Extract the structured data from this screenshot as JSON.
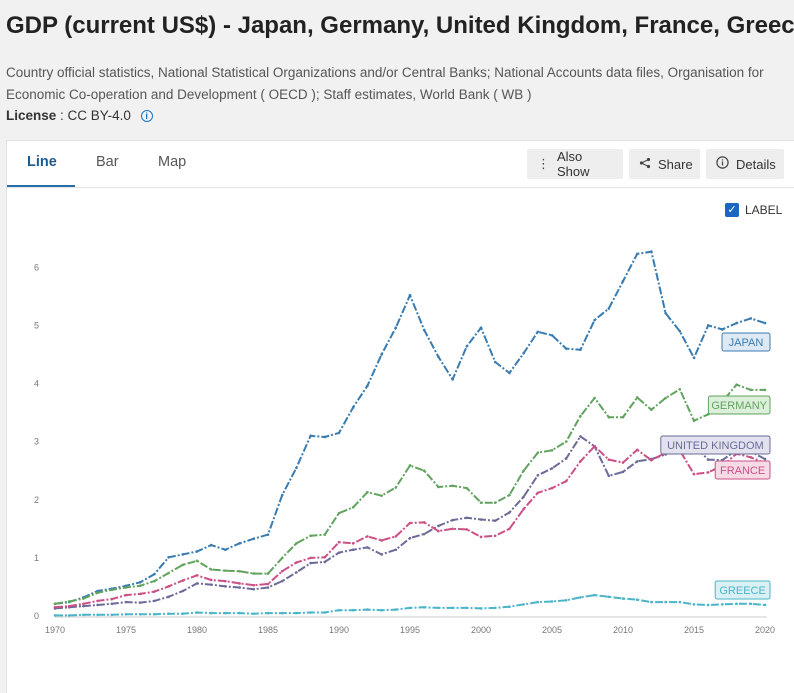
{
  "header": {
    "title": "GDP (current US$) - Japan, Germany, United Kingdom, France, Greece",
    "source": "Country official statistics, National Statistical Organizations and/or Central Banks; National Accounts data files, Organisation for Economic Co-operation and Development ( OECD ); Staff estimates, World Bank ( WB )",
    "license_label": "License",
    "license_value": ": CC BY-4.0"
  },
  "tabs": [
    {
      "label": "Line"
    },
    {
      "label": "Bar"
    },
    {
      "label": "Map"
    }
  ],
  "toolbar": {
    "also_show": "Also Show",
    "share": "Share",
    "details": "Details"
  },
  "label_toggle": "LABEL",
  "chart_data": {
    "type": "line",
    "title": "GDP (current US$) - Japan, Germany, United Kingdom, France, Greece",
    "xlabel": "",
    "ylabel": "",
    "xlim": [
      1970,
      2021
    ],
    "ylim": [
      0,
      6.4
    ],
    "yticks": [
      0,
      1,
      2,
      3,
      4,
      5,
      6
    ],
    "xticks": [
      1970,
      1975,
      1980,
      1985,
      1990,
      1995,
      2000,
      2005,
      2010,
      2015,
      2020
    ],
    "grid": false,
    "x": [
      1970,
      1971,
      1972,
      1973,
      1974,
      1975,
      1976,
      1977,
      1978,
      1979,
      1980,
      1981,
      1982,
      1983,
      1984,
      1985,
      1986,
      1987,
      1988,
      1989,
      1990,
      1991,
      1992,
      1993,
      1994,
      1995,
      1996,
      1997,
      1998,
      1999,
      2000,
      2001,
      2002,
      2003,
      2004,
      2005,
      2006,
      2007,
      2008,
      2009,
      2010,
      2011,
      2012,
      2013,
      2014,
      2015,
      2016,
      2017,
      2018,
      2019,
      2020
    ],
    "series": [
      {
        "name": "JAPAN",
        "color": "#3a7cb0",
        "label_fill": "#dde9f5",
        "values": [
          0.21,
          0.24,
          0.32,
          0.43,
          0.47,
          0.52,
          0.58,
          0.72,
          1.01,
          1.06,
          1.11,
          1.22,
          1.14,
          1.25,
          1.33,
          1.4,
          2.08,
          2.55,
          3.1,
          3.08,
          3.15,
          3.59,
          3.96,
          4.5,
          4.96,
          5.52,
          4.92,
          4.46,
          4.07,
          4.64,
          4.96,
          4.37,
          4.18,
          4.52,
          4.89,
          4.83,
          4.6,
          4.58,
          5.09,
          5.29,
          5.76,
          6.23,
          6.27,
          5.21,
          4.9,
          4.44,
          5.0,
          4.93,
          5.04,
          5.12,
          5.04
        ]
      },
      {
        "name": "GERMANY",
        "color": "#62a35e",
        "label_fill": "#dcefdb",
        "values": [
          0.21,
          0.25,
          0.3,
          0.4,
          0.45,
          0.49,
          0.52,
          0.6,
          0.74,
          0.88,
          0.95,
          0.8,
          0.78,
          0.77,
          0.73,
          0.73,
          1.0,
          1.25,
          1.38,
          1.4,
          1.77,
          1.87,
          2.13,
          2.07,
          2.21,
          2.59,
          2.5,
          2.22,
          2.24,
          2.2,
          1.95,
          1.95,
          2.08,
          2.5,
          2.81,
          2.85,
          3.0,
          3.44,
          3.75,
          3.42,
          3.42,
          3.76,
          3.55,
          3.75,
          3.9,
          3.36,
          3.47,
          3.69,
          3.98,
          3.89,
          3.89
        ]
      },
      {
        "name": "UNITED KINGDOM",
        "color": "#6b6b98",
        "label_fill": "#e2e2ef",
        "values": [
          0.13,
          0.15,
          0.17,
          0.19,
          0.21,
          0.24,
          0.23,
          0.26,
          0.33,
          0.43,
          0.56,
          0.54,
          0.51,
          0.49,
          0.46,
          0.49,
          0.6,
          0.75,
          0.91,
          0.93,
          1.09,
          1.14,
          1.18,
          1.06,
          1.14,
          1.34,
          1.41,
          1.55,
          1.65,
          1.69,
          1.66,
          1.64,
          1.78,
          2.05,
          2.42,
          2.54,
          2.71,
          3.09,
          2.92,
          2.41,
          2.48,
          2.66,
          2.7,
          2.78,
          3.06,
          2.93,
          2.69,
          2.68,
          2.86,
          2.83,
          2.7
        ]
      },
      {
        "name": "FRANCE",
        "color": "#cc4f86",
        "label_fill": "#f6dbe7",
        "values": [
          0.15,
          0.17,
          0.21,
          0.26,
          0.29,
          0.36,
          0.38,
          0.42,
          0.51,
          0.61,
          0.7,
          0.62,
          0.6,
          0.56,
          0.53,
          0.55,
          0.77,
          0.92,
          1.0,
          1.01,
          1.27,
          1.25,
          1.37,
          1.3,
          1.37,
          1.6,
          1.61,
          1.46,
          1.5,
          1.49,
          1.36,
          1.38,
          1.5,
          1.84,
          2.12,
          2.2,
          2.32,
          2.66,
          2.92,
          2.69,
          2.64,
          2.86,
          2.68,
          2.81,
          2.85,
          2.44,
          2.47,
          2.59,
          2.79,
          2.73,
          2.63
        ]
      },
      {
        "name": "GREECE",
        "color": "#4ab5c8",
        "label_fill": "#d9f1f4",
        "values": [
          0.01,
          0.01,
          0.02,
          0.02,
          0.02,
          0.03,
          0.03,
          0.03,
          0.04,
          0.04,
          0.06,
          0.05,
          0.05,
          0.05,
          0.04,
          0.05,
          0.05,
          0.05,
          0.06,
          0.06,
          0.1,
          0.1,
          0.11,
          0.1,
          0.11,
          0.14,
          0.15,
          0.14,
          0.14,
          0.14,
          0.13,
          0.14,
          0.16,
          0.2,
          0.24,
          0.25,
          0.27,
          0.32,
          0.36,
          0.33,
          0.3,
          0.28,
          0.24,
          0.24,
          0.24,
          0.2,
          0.19,
          0.2,
          0.21,
          0.21,
          0.19
        ]
      }
    ]
  }
}
